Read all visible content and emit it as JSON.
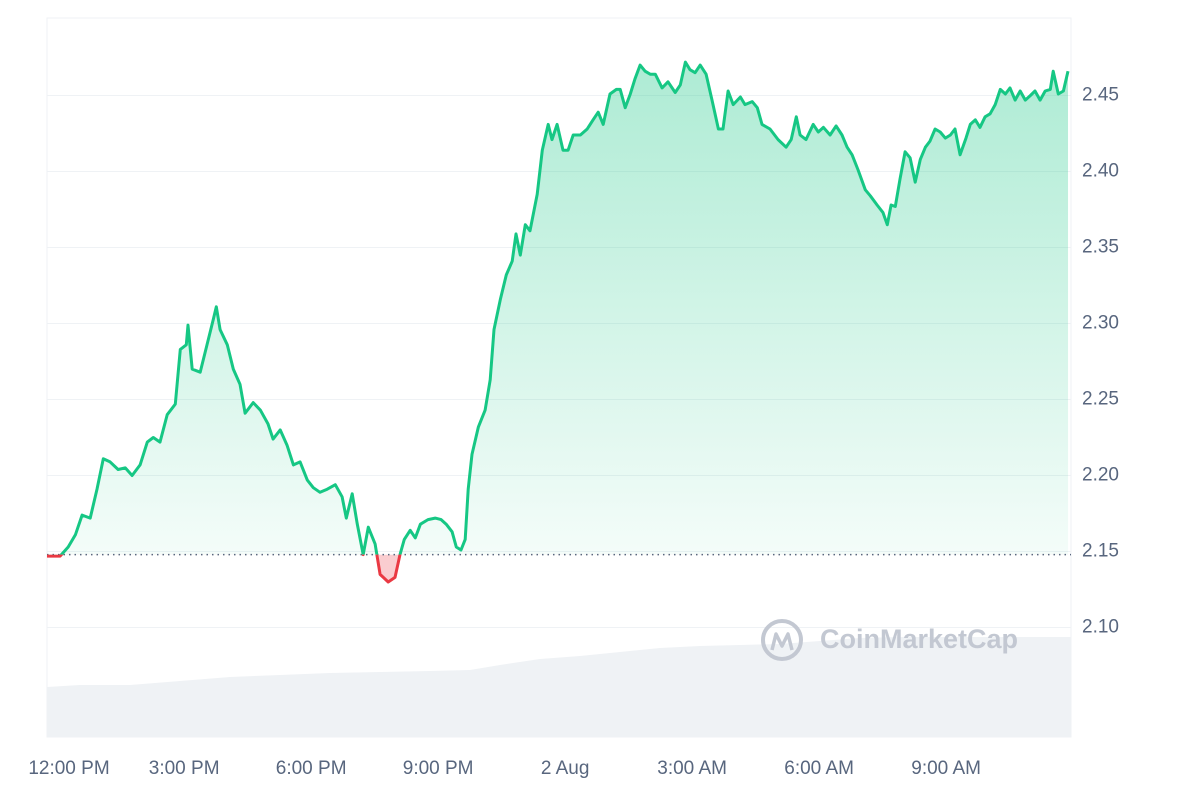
{
  "chart_data": {
    "type": "line",
    "watermark": "CoinMarketCap",
    "baseline": 2.148,
    "up_color": "#16c784",
    "down_color": "#ea3943",
    "grid": true,
    "xlim": [
      -0.24,
      23.95
    ],
    "ylim": [
      2.028,
      2.501
    ],
    "xticks": [
      {
        "value": 0,
        "label": "12:00 PM"
      },
      {
        "value": 3,
        "label": "3:00 PM"
      },
      {
        "value": 6,
        "label": "6:00 PM"
      },
      {
        "value": 9,
        "label": "9:00 PM"
      },
      {
        "value": 12,
        "label": "2 Aug"
      },
      {
        "value": 15,
        "label": "3:00 AM"
      },
      {
        "value": 18,
        "label": "6:00 AM"
      },
      {
        "value": 21,
        "label": "9:00 AM"
      }
    ],
    "yticks": [
      {
        "value": 2.1,
        "label": "2.10"
      },
      2.15,
      {
        "value": 2.2,
        "label": "2.20"
      },
      2.25,
      {
        "value": 2.3,
        "label": "2.30"
      },
      2.35,
      {
        "value": 2.4,
        "label": "2.40"
      },
      2.45
    ],
    "x": [
      -0.24,
      0.07,
      0.26,
      0.43,
      0.59,
      0.78,
      0.94,
      1.09,
      1.25,
      1.44,
      1.61,
      1.77,
      1.96,
      2.13,
      2.27,
      2.43,
      2.6,
      2.79,
      2.91,
      3.05,
      3.09,
      3.19,
      3.38,
      3.54,
      3.69,
      3.76,
      3.85,
      4.02,
      4.16,
      4.32,
      4.44,
      4.63,
      4.8,
      4.98,
      5.1,
      5.27,
      5.43,
      5.58,
      5.74,
      5.91,
      6.05,
      6.21,
      6.38,
      6.57,
      6.73,
      6.83,
      6.97,
      7.09,
      7.23,
      7.35,
      7.51,
      7.63,
      7.82,
      7.98,
      8.1,
      8.2,
      8.34,
      8.46,
      8.58,
      8.76,
      8.93,
      9.07,
      9.19,
      9.33,
      9.43,
      9.54,
      9.64,
      9.71,
      9.8,
      9.95,
      10.11,
      10.23,
      10.32,
      10.47,
      10.61,
      10.75,
      10.84,
      10.94,
      11.06,
      11.17,
      11.34,
      11.46,
      11.6,
      11.69,
      11.81,
      11.95,
      12.07,
      12.19,
      12.36,
      12.52,
      12.66,
      12.78,
      12.9,
      13.06,
      13.21,
      13.3,
      13.42,
      13.54,
      13.65,
      13.77,
      13.89,
      14.01,
      14.13,
      14.29,
      14.43,
      14.6,
      14.72,
      14.84,
      14.95,
      15.07,
      15.19,
      15.33,
      15.47,
      15.62,
      15.73,
      15.85,
      15.97,
      16.14,
      16.25,
      16.42,
      16.54,
      16.65,
      16.84,
      17.03,
      17.22,
      17.34,
      17.46,
      17.55,
      17.69,
      17.86,
      17.98,
      18.1,
      18.26,
      18.4,
      18.54,
      18.66,
      18.78,
      18.92,
      19.09,
      19.21,
      19.37,
      19.51,
      19.61,
      19.7,
      19.8,
      19.91,
      20.03,
      20.15,
      20.27,
      20.39,
      20.51,
      20.62,
      20.74,
      20.86,
      20.98,
      21.1,
      21.21,
      21.33,
      21.47,
      21.57,
      21.69,
      21.8,
      21.92,
      22.04,
      22.16,
      22.28,
      22.4,
      22.51,
      22.63,
      22.75,
      22.87,
      22.99,
      23.1,
      23.22,
      23.34,
      23.46,
      23.53,
      23.65,
      23.77,
      23.88
    ],
    "values": [
      2.147,
      2.147,
      2.153,
      2.161,
      2.174,
      2.172,
      2.191,
      2.211,
      2.209,
      2.204,
      2.205,
      2.2,
      2.207,
      2.222,
      2.225,
      2.222,
      2.24,
      2.247,
      2.283,
      2.286,
      2.299,
      2.27,
      2.268,
      2.286,
      2.303,
      2.311,
      2.296,
      2.286,
      2.27,
      2.26,
      2.241,
      2.248,
      2.243,
      2.234,
      2.224,
      2.23,
      2.22,
      2.207,
      2.209,
      2.197,
      2.192,
      2.189,
      2.191,
      2.194,
      2.186,
      2.172,
      2.188,
      2.168,
      2.148,
      2.166,
      2.155,
      2.135,
      2.13,
      2.133,
      2.148,
      2.158,
      2.164,
      2.159,
      2.168,
      2.171,
      2.172,
      2.171,
      2.168,
      2.163,
      2.153,
      2.151,
      2.158,
      2.191,
      2.214,
      2.232,
      2.243,
      2.263,
      2.296,
      2.316,
      2.332,
      2.341,
      2.359,
      2.345,
      2.365,
      2.361,
      2.385,
      2.414,
      2.431,
      2.421,
      2.431,
      2.414,
      2.414,
      2.424,
      2.424,
      2.428,
      2.434,
      2.439,
      2.431,
      2.451,
      2.454,
      2.454,
      2.442,
      2.451,
      2.461,
      2.47,
      2.466,
      2.464,
      2.464,
      2.455,
      2.459,
      2.452,
      2.457,
      2.472,
      2.467,
      2.465,
      2.47,
      2.464,
      2.447,
      2.428,
      2.428,
      2.453,
      2.444,
      2.449,
      2.444,
      2.446,
      2.442,
      2.431,
      2.428,
      2.421,
      2.416,
      2.421,
      2.436,
      2.424,
      2.421,
      2.431,
      2.426,
      2.429,
      2.424,
      2.43,
      2.424,
      2.416,
      2.411,
      2.401,
      2.388,
      2.384,
      2.378,
      2.373,
      2.365,
      2.378,
      2.377,
      2.395,
      2.413,
      2.409,
      2.393,
      2.408,
      2.416,
      2.42,
      2.428,
      2.426,
      2.422,
      2.424,
      2.428,
      2.411,
      2.422,
      2.431,
      2.434,
      2.429,
      2.436,
      2.438,
      2.444,
      2.454,
      2.451,
      2.455,
      2.447,
      2.453,
      2.447,
      2.45,
      2.453,
      2.447,
      2.453,
      2.454,
      2.466,
      2.451,
      2.453,
      2.466
    ]
  }
}
